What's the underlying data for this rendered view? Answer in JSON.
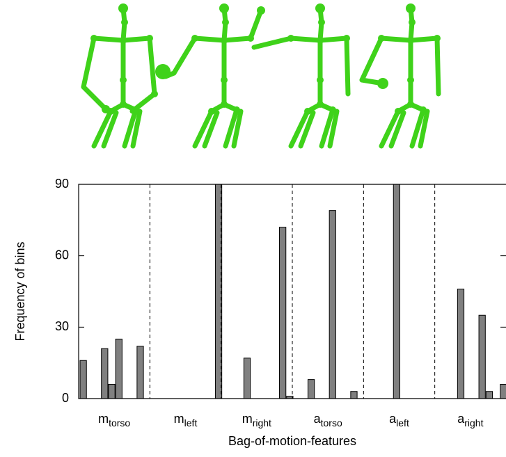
{
  "chart_data": {
    "type": "bar",
    "ylabel": "Frequency of bins",
    "xlabel": "Bag-of-motion-features",
    "groups": [
      {
        "base": "m",
        "sub": "torso"
      },
      {
        "base": "m",
        "sub": "left"
      },
      {
        "base": "m",
        "sub": "right"
      },
      {
        "base": "a",
        "sub": "torso"
      },
      {
        "base": "a",
        "sub": "left"
      },
      {
        "base": "a",
        "sub": "right"
      }
    ],
    "values": [
      16,
      0,
      0,
      21,
      6,
      25,
      0,
      0,
      22,
      0,
      0,
      0,
      0,
      0,
      0,
      0,
      0,
      0,
      0,
      90,
      0,
      0,
      0,
      17,
      0,
      0,
      0,
      0,
      72,
      1,
      0,
      0,
      8,
      0,
      0,
      79,
      0,
      0,
      3,
      0,
      0,
      0,
      0,
      0,
      90,
      0,
      0,
      0,
      0,
      0,
      0,
      0,
      0,
      46,
      0,
      0,
      35,
      3,
      0,
      6
    ],
    "color": "#808080",
    "ylim": [
      0,
      90
    ],
    "yticks": [
      0,
      30,
      60,
      90
    ]
  }
}
